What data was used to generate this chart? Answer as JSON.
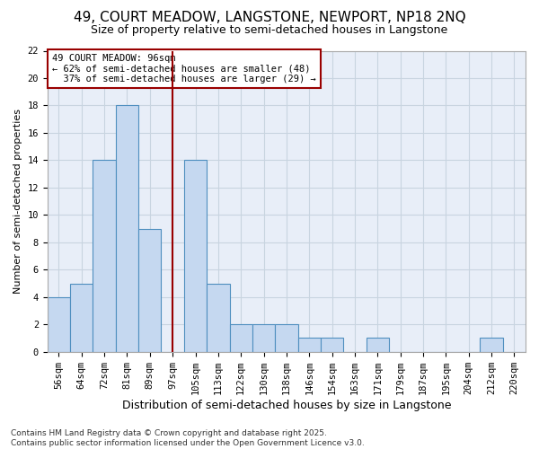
{
  "title1": "49, COURT MEADOW, LANGSTONE, NEWPORT, NP18 2NQ",
  "title2": "Size of property relative to semi-detached houses in Langstone",
  "xlabel": "Distribution of semi-detached houses by size in Langstone",
  "ylabel": "Number of semi-detached properties",
  "categories": [
    "56sqm",
    "64sqm",
    "72sqm",
    "81sqm",
    "89sqm",
    "97sqm",
    "105sqm",
    "113sqm",
    "122sqm",
    "130sqm",
    "138sqm",
    "146sqm",
    "154sqm",
    "163sqm",
    "171sqm",
    "179sqm",
    "187sqm",
    "195sqm",
    "204sqm",
    "212sqm",
    "220sqm"
  ],
  "values": [
    4,
    5,
    14,
    18,
    9,
    0,
    14,
    5,
    2,
    2,
    2,
    1,
    1,
    0,
    1,
    0,
    0,
    0,
    0,
    1,
    0
  ],
  "bar_color": "#c5d8f0",
  "bar_edge_color": "#4f8fbf",
  "grid_color": "#c8d4e0",
  "plot_bg_color": "#e8eef8",
  "fig_bg_color": "#ffffff",
  "marker_label": "49 COURT MEADOW: 96sqm",
  "pct_smaller": "62% of semi-detached houses are smaller (48)",
  "pct_larger": "37% of semi-detached houses are larger (29)",
  "annotation_box_color": "#ffffff",
  "annotation_border_color": "#990000",
  "vline_color": "#990000",
  "vline_x": 5,
  "ylim": [
    0,
    22
  ],
  "yticks": [
    0,
    2,
    4,
    6,
    8,
    10,
    12,
    14,
    16,
    18,
    20,
    22
  ],
  "footer1": "Contains HM Land Registry data © Crown copyright and database right 2025.",
  "footer2": "Contains public sector information licensed under the Open Government Licence v3.0.",
  "title1_fontsize": 11,
  "title2_fontsize": 9,
  "xlabel_fontsize": 9,
  "ylabel_fontsize": 8,
  "tick_fontsize": 7.5,
  "annotation_fontsize": 7.5,
  "footer_fontsize": 6.5
}
